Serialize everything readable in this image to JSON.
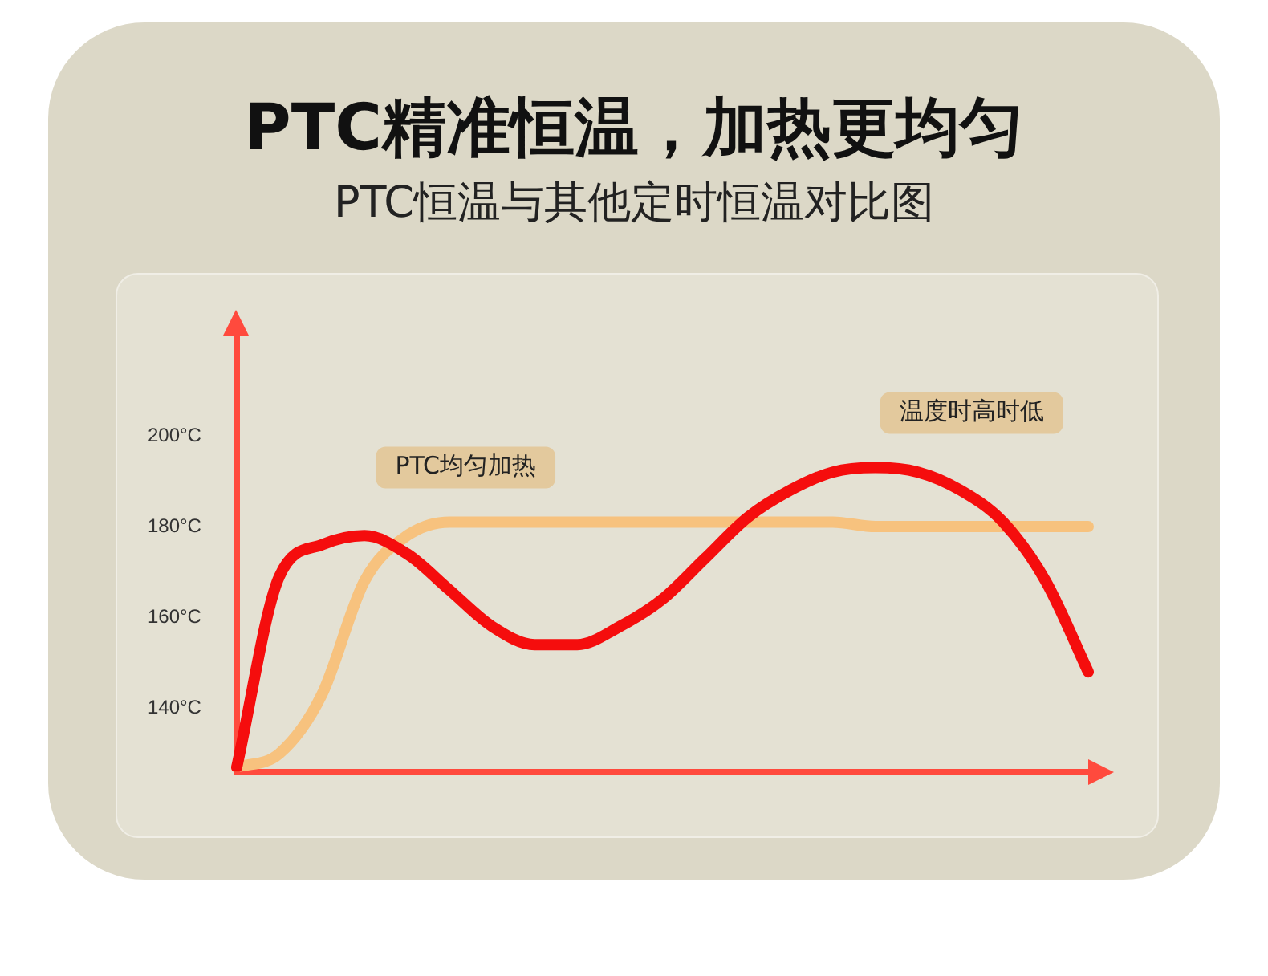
{
  "chart_data": {
    "type": "line",
    "title": "PTC精准恒温，加热更均匀",
    "subtitle": "PTC恒温与其他定时恒温对比图",
    "categories": [
      null,
      null,
      null,
      null,
      null,
      null,
      null,
      null,
      null,
      null,
      null,
      null,
      null,
      null,
      null,
      null,
      null,
      null,
      null,
      null,
      null
    ],
    "series": [
      {
        "name": "温度时高时低",
        "color": "#f50d0d",
        "values": [
          127,
          169,
          176,
          178,
          174,
          166,
          158,
          154,
          154,
          158,
          164,
          173,
          182,
          188,
          192,
          193,
          192,
          188,
          181,
          168,
          148
        ]
      },
      {
        "name": "PTC均匀加热",
        "color": "#f7c27e",
        "values": [
          127,
          130,
          143,
          168,
          178,
          181,
          181,
          181,
          181,
          181,
          181,
          181,
          181,
          181,
          181,
          180,
          180,
          180,
          180,
          180,
          180
        ]
      }
    ],
    "ylim": [
      126,
      222
    ],
    "yticks": [
      {
        "value": 140,
        "label": "140°C"
      },
      {
        "value": 160,
        "label": "160°C"
      },
      {
        "value": 180,
        "label": "180°C"
      },
      {
        "value": 200,
        "label": "200°C"
      }
    ],
    "grid": false,
    "legend": false,
    "marker": "none",
    "line_style": "solid",
    "tick_labels": "y"
  }
}
